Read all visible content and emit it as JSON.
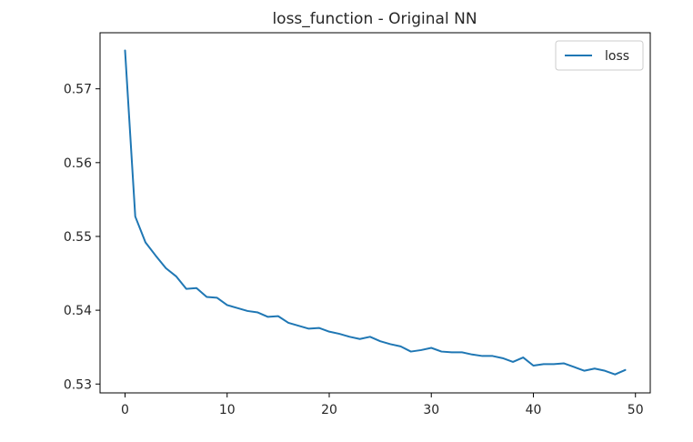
{
  "chart_data": {
    "type": "line",
    "title": "loss_function - Original NN",
    "xlabel": "",
    "ylabel": "",
    "xlim": [
      -2.45,
      51.45
    ],
    "ylim": [
      0.5288,
      0.5776
    ],
    "xticks": [
      0,
      10,
      20,
      30,
      40,
      50
    ],
    "yticks": [
      0.53,
      0.54,
      0.55,
      0.56,
      0.57
    ],
    "ytick_labels": [
      "0.53",
      "0.54",
      "0.55",
      "0.56",
      "0.57"
    ],
    "grid": false,
    "legend": {
      "position": "top-right",
      "entries": [
        "loss"
      ]
    },
    "series": [
      {
        "name": "loss",
        "color": "#1f77b4",
        "x": [
          0,
          1,
          2,
          3,
          4,
          5,
          6,
          7,
          8,
          9,
          10,
          11,
          12,
          13,
          14,
          15,
          16,
          17,
          18,
          19,
          20,
          21,
          22,
          23,
          24,
          25,
          26,
          27,
          28,
          29,
          30,
          31,
          32,
          33,
          34,
          35,
          36,
          37,
          38,
          39,
          40,
          41,
          42,
          43,
          44,
          45,
          46,
          47,
          48,
          49
        ],
        "values": [
          0.5752,
          0.5527,
          0.5492,
          0.5474,
          0.5457,
          0.5446,
          0.5429,
          0.543,
          0.5418,
          0.5417,
          0.5407,
          0.5403,
          0.5399,
          0.5397,
          0.5391,
          0.5392,
          0.5383,
          0.5379,
          0.5375,
          0.5376,
          0.5371,
          0.5368,
          0.5364,
          0.5361,
          0.5364,
          0.5358,
          0.5354,
          0.5351,
          0.5344,
          0.5346,
          0.5349,
          0.5344,
          0.5343,
          0.5343,
          0.534,
          0.5338,
          0.5338,
          0.5335,
          0.533,
          0.5336,
          0.5325,
          0.5327,
          0.5327,
          0.5328,
          0.5323,
          0.5318,
          0.5321,
          0.5318,
          0.5313,
          0.5319
        ]
      }
    ]
  }
}
